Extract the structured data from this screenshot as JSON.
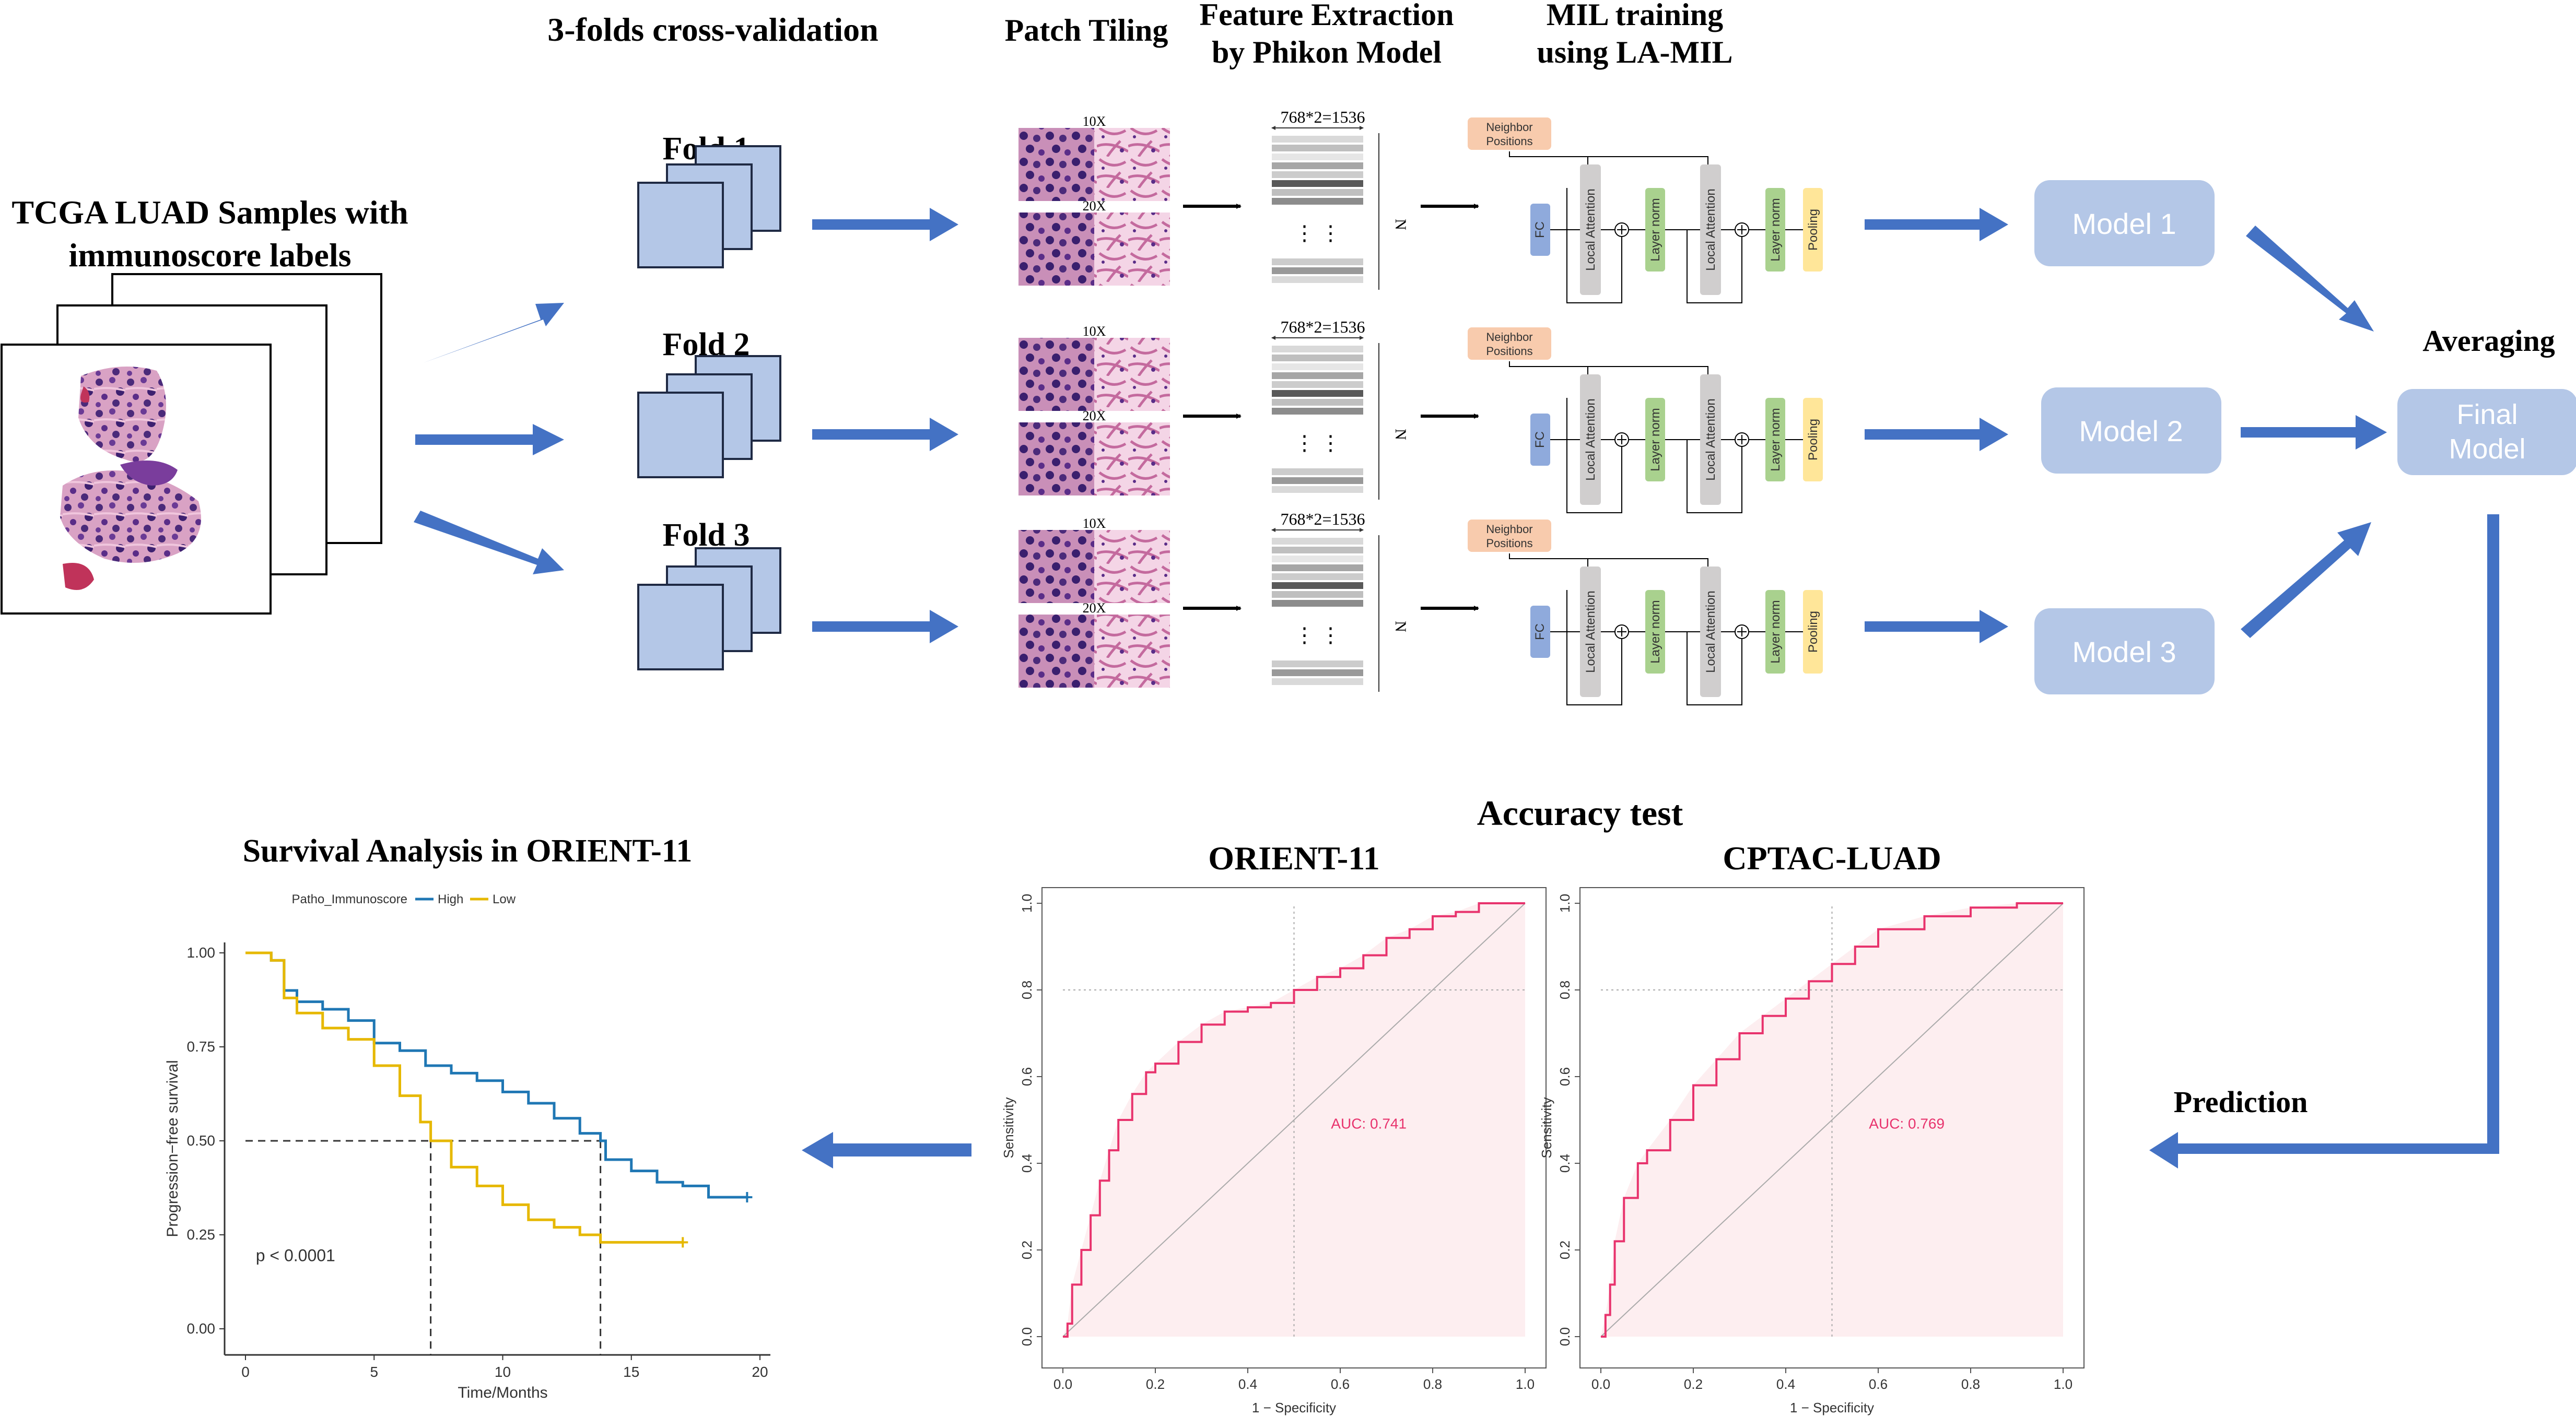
{
  "headers": {
    "cv": "3-folds cross-validation",
    "patch": "Patch Tiling",
    "feature_l1": "Feature Extraction",
    "feature_l2": "by Phikon Model",
    "mil_l1": "MIL training",
    "mil_l2": "using LA-MIL"
  },
  "samples": {
    "title_l1": "TCGA LUAD Samples with",
    "title_l2": "immunoscore labels"
  },
  "folds": [
    "Fold 1",
    "Fold 2",
    "Fold 3"
  ],
  "patch": {
    "mag_top": "10X",
    "mag_bottom": "20X"
  },
  "feature": {
    "dim": "768*2=1536",
    "n": "N",
    "ellipsis": "⋮ ⋮"
  },
  "mil": {
    "neighbor_l1": "Neighbor",
    "neighbor_l2": "Positions",
    "fc": "FC",
    "attention": "Local Attention",
    "layernorm": "Layer norm",
    "pooling": "Pooling"
  },
  "models": [
    "Model 1",
    "Model 2",
    "Model 3"
  ],
  "averaging": "Averaging",
  "final_l1": "Final",
  "final_l2": "Model",
  "prediction": "Prediction",
  "accuracy_title": "Accuracy test",
  "survival": {
    "title": "Survival Analysis in ORIENT-11",
    "legend_title": "Patho_Immunoscore",
    "legend_high": "High",
    "legend_low": "Low",
    "ylabel": "Progression−free survival",
    "xlabel": "Time/Months",
    "pvalue": "p < 0.0001",
    "yticks": [
      "0.00",
      "0.25",
      "0.50",
      "0.75",
      "1.00"
    ],
    "xticks": [
      "0",
      "5",
      "10",
      "15",
      "20"
    ]
  },
  "roc_left": {
    "title": "ORIENT-11",
    "auc": "AUC: 0.741",
    "xlabel": "1 − Specificity",
    "ylabel": "Sensitivity"
  },
  "roc_right": {
    "title": "CPTAC-LUAD",
    "auc": "AUC: 0.769",
    "xlabel": "1 − Specificity",
    "ylabel": "Sensitivity"
  },
  "roc_ticks": [
    "0.0",
    "0.2",
    "0.4",
    "0.6",
    "0.8",
    "1.0"
  ],
  "colors": {
    "arrow": "#4472c4",
    "fold": "#b4c7e7",
    "model": "#b4c7e7",
    "high": "#1f77b4",
    "low": "#e6b800",
    "roc": "#e8336d"
  },
  "chart_data": [
    {
      "type": "line",
      "title": "Survival Analysis in ORIENT-11",
      "xlabel": "Time/Months",
      "ylabel": "Progression−free survival",
      "xlim": [
        0,
        20
      ],
      "ylim": [
        0,
        1
      ],
      "series": [
        {
          "name": "High",
          "x": [
            0,
            1,
            1.5,
            2,
            3,
            4,
            5,
            6,
            7,
            8,
            9,
            10,
            11,
            12,
            13,
            13.8,
            14,
            15,
            16,
            17,
            18,
            19.5
          ],
          "y": [
            1.0,
            0.98,
            0.9,
            0.87,
            0.85,
            0.82,
            0.76,
            0.74,
            0.7,
            0.68,
            0.66,
            0.63,
            0.6,
            0.56,
            0.52,
            0.5,
            0.45,
            0.42,
            0.39,
            0.38,
            0.35,
            0.35
          ]
        },
        {
          "name": "Low",
          "x": [
            0,
            1,
            1.5,
            2,
            3,
            4,
            5,
            6,
            6.8,
            7.2,
            8,
            9,
            10,
            11,
            12,
            13,
            13.8,
            15,
            16,
            17
          ],
          "y": [
            1.0,
            0.98,
            0.88,
            0.84,
            0.8,
            0.77,
            0.7,
            0.62,
            0.55,
            0.5,
            0.43,
            0.38,
            0.33,
            0.29,
            0.27,
            0.25,
            0.23,
            0.23,
            0.23,
            0.23
          ]
        }
      ],
      "median_lines": [
        7.2,
        13.8
      ],
      "pvalue": "p < 0.0001"
    },
    {
      "type": "line",
      "title": "ORIENT-11",
      "auc": 0.741,
      "xlabel": "1 − Specificity",
      "ylabel": "Sensitivity",
      "xlim": [
        0,
        1
      ],
      "ylim": [
        0,
        1
      ],
      "x": [
        0,
        0.01,
        0.02,
        0.04,
        0.06,
        0.08,
        0.1,
        0.12,
        0.15,
        0.18,
        0.2,
        0.25,
        0.3,
        0.35,
        0.4,
        0.45,
        0.5,
        0.55,
        0.6,
        0.65,
        0.7,
        0.75,
        0.8,
        0.85,
        0.9,
        0.95,
        1.0
      ],
      "y": [
        0,
        0.03,
        0.12,
        0.2,
        0.28,
        0.36,
        0.43,
        0.5,
        0.56,
        0.61,
        0.63,
        0.68,
        0.72,
        0.75,
        0.76,
        0.77,
        0.8,
        0.83,
        0.85,
        0.88,
        0.92,
        0.94,
        0.97,
        0.98,
        1.0,
        1.0,
        1.0
      ]
    },
    {
      "type": "line",
      "title": "CPTAC-LUAD",
      "auc": 0.769,
      "xlabel": "1 − Specificity",
      "ylabel": "Sensitivity",
      "xlim": [
        0,
        1
      ],
      "ylim": [
        0,
        1
      ],
      "x": [
        0,
        0.01,
        0.02,
        0.03,
        0.05,
        0.08,
        0.1,
        0.15,
        0.2,
        0.25,
        0.3,
        0.35,
        0.4,
        0.45,
        0.5,
        0.55,
        0.6,
        0.7,
        0.8,
        0.9,
        1.0
      ],
      "y": [
        0,
        0.05,
        0.12,
        0.22,
        0.32,
        0.4,
        0.43,
        0.5,
        0.58,
        0.64,
        0.7,
        0.74,
        0.78,
        0.82,
        0.86,
        0.9,
        0.94,
        0.97,
        0.99,
        1.0,
        1.0
      ]
    }
  ]
}
